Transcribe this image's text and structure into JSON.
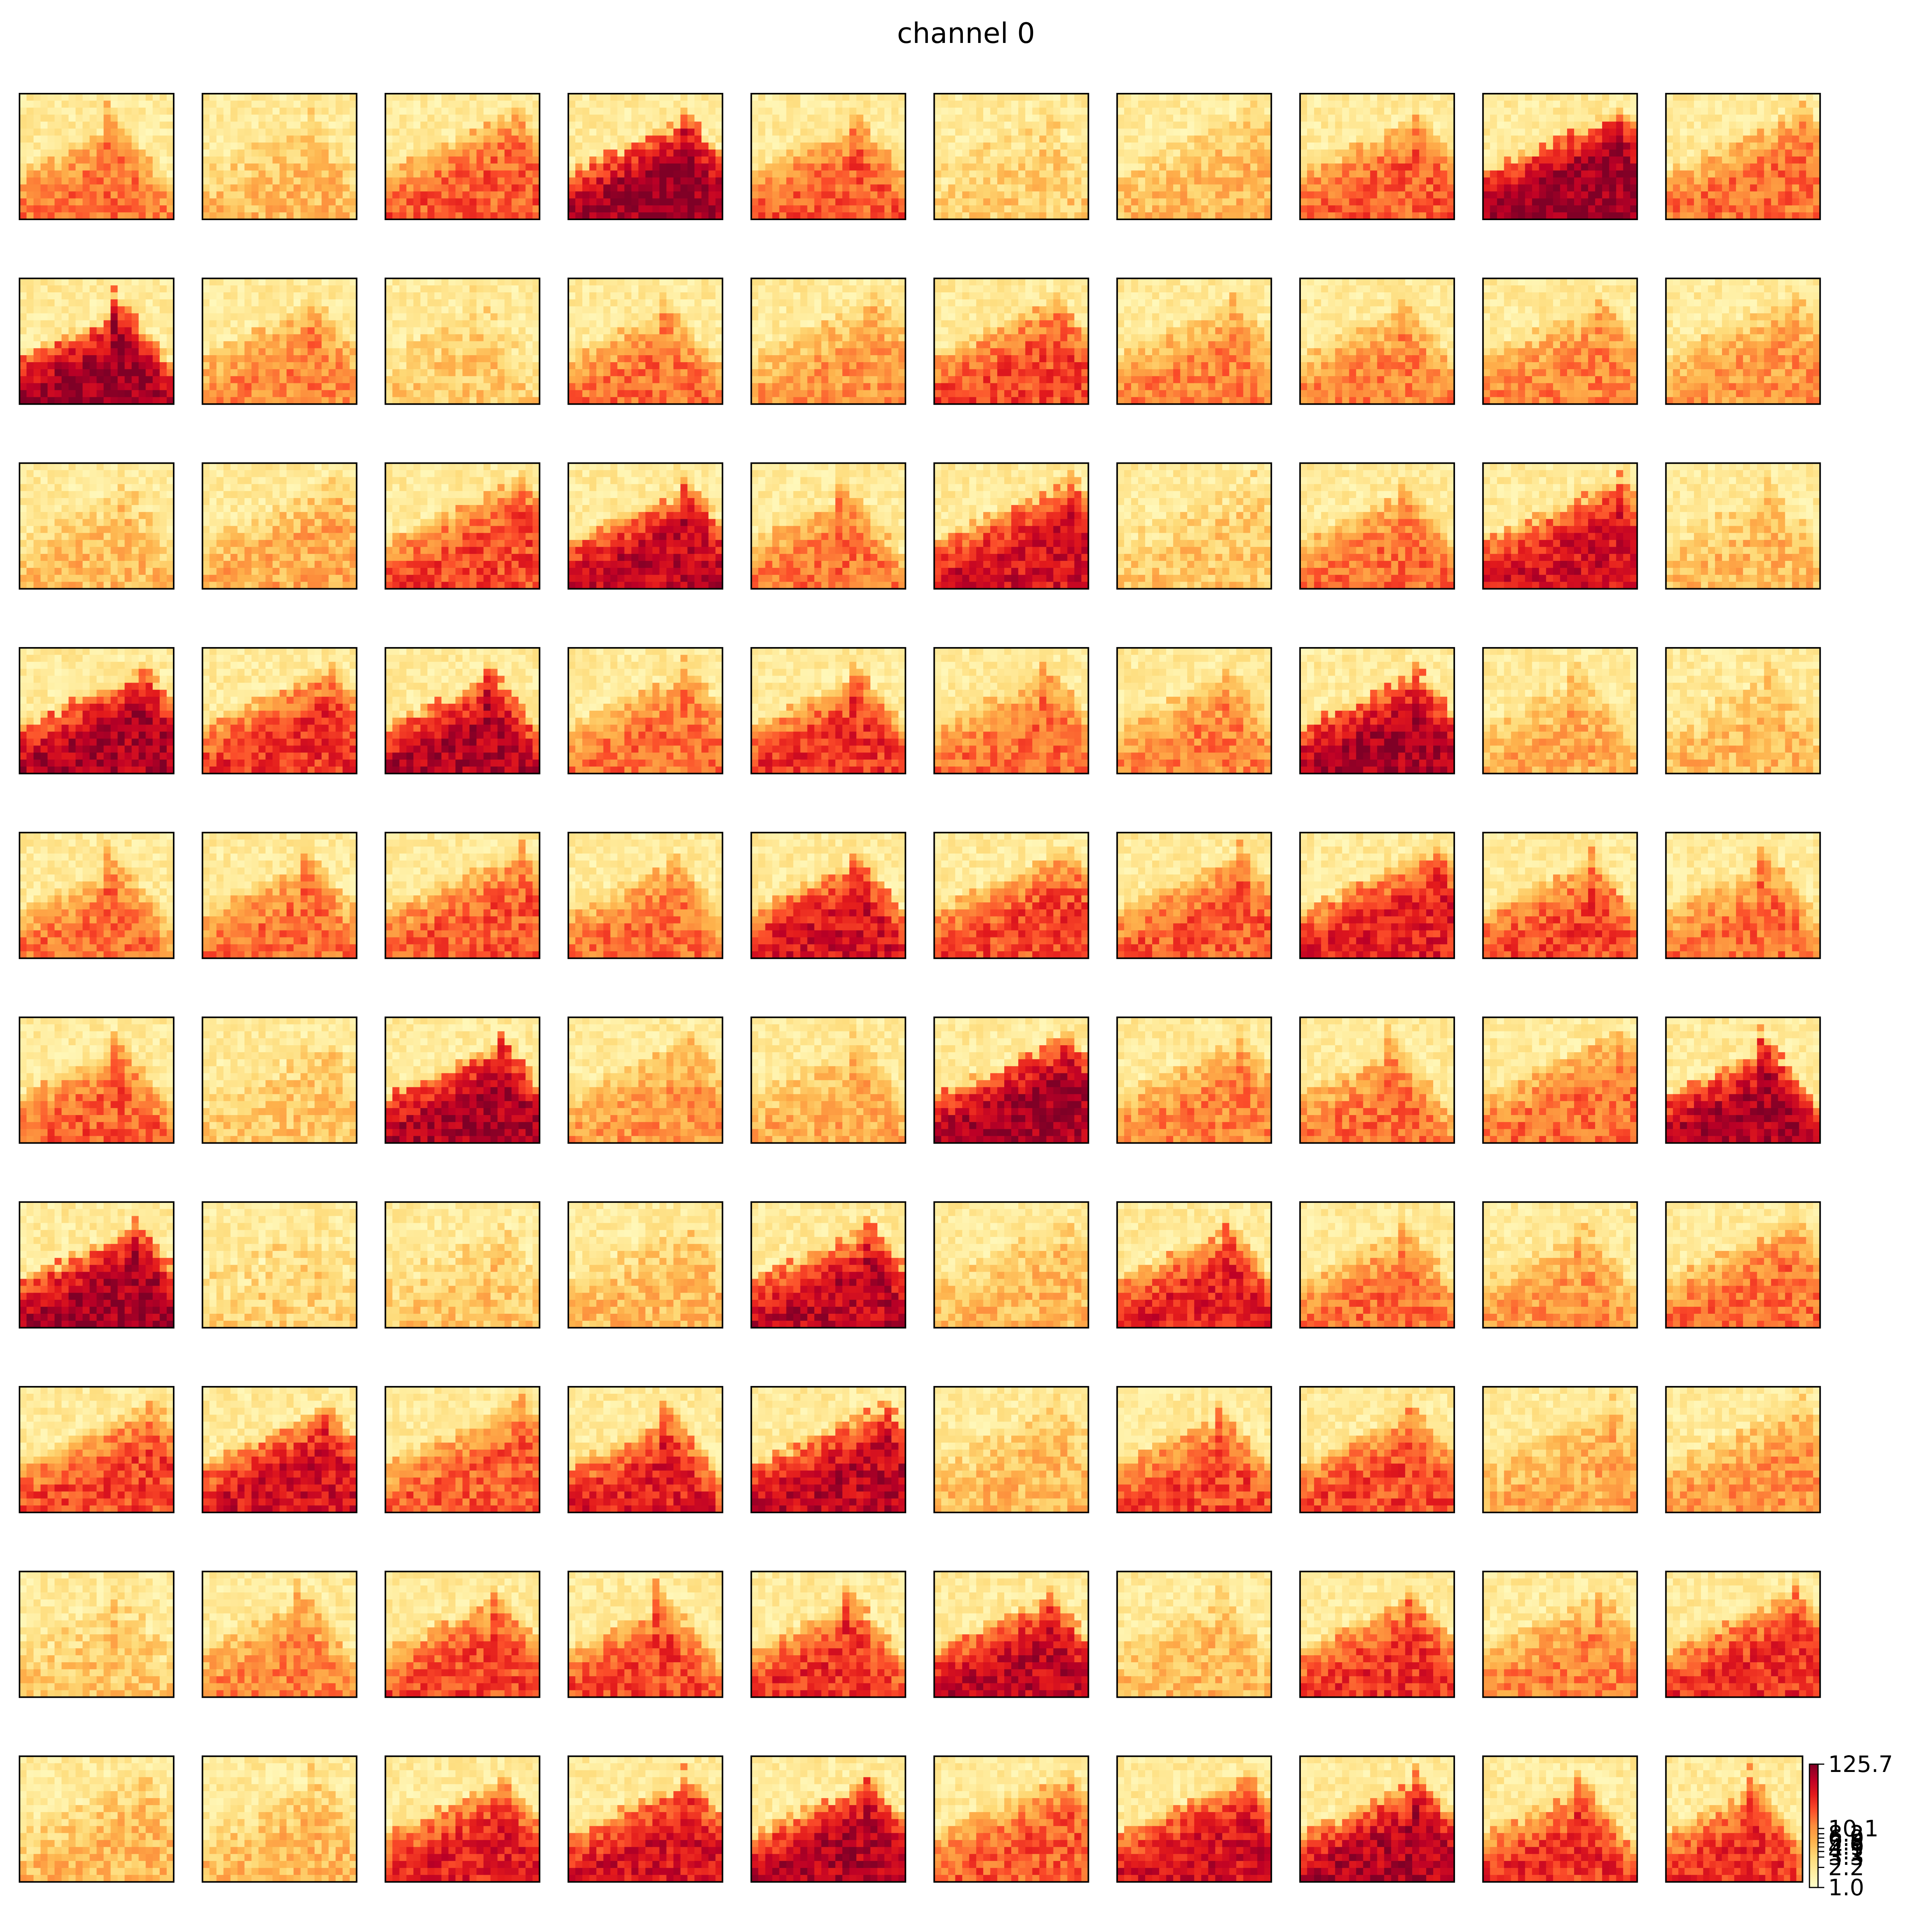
{
  "chart_data": {
    "type": "heatmap",
    "title": "channel 0",
    "layout": {
      "rows": 10,
      "cols": 10
    },
    "panel_grid": {
      "rows": 18,
      "cols": 22
    },
    "colormap": "YlOrRd",
    "color_stops": [
      "#ffffcc",
      "#ffeda0",
      "#fed976",
      "#feb24c",
      "#fd8d3c",
      "#fc4e2a",
      "#e31a1c",
      "#bd0026",
      "#800026"
    ],
    "colorbar": {
      "scale": "log",
      "vmin": 1.0,
      "vmax": 125.7,
      "tick_labels": [
        "125.7",
        "10.1",
        "8.2",
        "6.9",
        "5.8",
        "4.9",
        "4.1",
        "3.3",
        "2.2",
        "1.0"
      ]
    },
    "panel_intensity": [
      [
        0.55,
        0.35,
        0.6,
        0.95,
        0.6,
        0.28,
        0.35,
        0.6,
        0.95,
        0.55
      ],
      [
        0.95,
        0.5,
        0.3,
        0.55,
        0.45,
        0.65,
        0.5,
        0.5,
        0.5,
        0.45
      ],
      [
        0.35,
        0.4,
        0.65,
        0.85,
        0.55,
        0.8,
        0.3,
        0.55,
        0.8,
        0.35
      ],
      [
        0.9,
        0.7,
        0.9,
        0.55,
        0.7,
        0.55,
        0.5,
        0.92,
        0.4,
        0.35
      ],
      [
        0.55,
        0.55,
        0.6,
        0.55,
        0.8,
        0.65,
        0.6,
        0.75,
        0.65,
        0.55
      ],
      [
        0.6,
        0.3,
        0.92,
        0.45,
        0.4,
        0.92,
        0.5,
        0.55,
        0.55,
        0.92
      ],
      [
        0.92,
        0.25,
        0.3,
        0.35,
        0.85,
        0.35,
        0.75,
        0.55,
        0.45,
        0.55
      ],
      [
        0.65,
        0.8,
        0.6,
        0.75,
        0.85,
        0.35,
        0.65,
        0.65,
        0.4,
        0.45
      ],
      [
        0.3,
        0.5,
        0.65,
        0.65,
        0.7,
        0.85,
        0.35,
        0.7,
        0.5,
        0.7
      ],
      [
        0.35,
        0.35,
        0.75,
        0.8,
        0.88,
        0.6,
        0.8,
        0.88,
        0.7,
        0.7
      ]
    ]
  }
}
